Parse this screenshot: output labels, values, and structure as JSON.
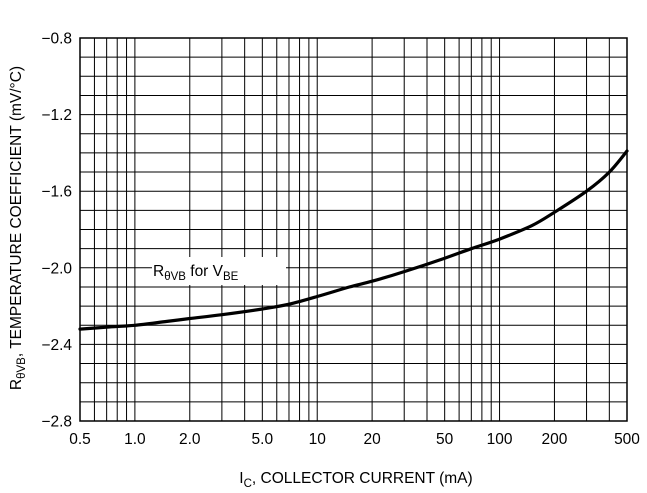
{
  "chart_data": {
    "type": "line",
    "xscale": "log",
    "xlim": [
      0.5,
      500
    ],
    "ylim": [
      -2.8,
      -0.8
    ],
    "grid": true,
    "x_tick_labels": [
      "0.5",
      "1.0",
      "2.0",
      "5.0",
      "10",
      "20",
      "50",
      "100",
      "200",
      "500"
    ],
    "x_tick_values": [
      0.5,
      1,
      2,
      5,
      10,
      20,
      50,
      100,
      200,
      500
    ],
    "y_tick_labels": [
      "−0.8",
      "−1.2",
      "−1.6",
      "−2.0",
      "−2.4",
      "−2.8"
    ],
    "y_tick_values": [
      -0.8,
      -1.2,
      -1.6,
      -2.0,
      -2.4,
      -2.8
    ],
    "xlabel": {
      "main": "I",
      "sub": "C",
      "rest": ", COLLECTOR CURRENT (mA)"
    },
    "ylabel": {
      "main": "R",
      "sub": "θVB",
      "rest": ", TEMPERATURE COEFFICIENT (mV/°C)"
    },
    "annotation": {
      "r": "R",
      "r_sub": "θVB",
      "middle": " for V",
      "v_sub": "BE"
    },
    "series": [
      {
        "x": [
          0.5,
          0.7,
          1.0,
          1.5,
          2.0,
          3.0,
          5.0,
          7.0,
          10,
          15,
          20,
          30,
          50,
          70,
          100,
          150,
          200,
          300,
          400,
          500
        ],
        "y": [
          -2.32,
          -2.31,
          -2.3,
          -2.28,
          -2.265,
          -2.245,
          -2.215,
          -2.19,
          -2.15,
          -2.1,
          -2.07,
          -2.02,
          -1.95,
          -1.9,
          -1.85,
          -1.78,
          -1.71,
          -1.6,
          -1.5,
          -1.39
        ]
      }
    ],
    "colors": {
      "line": "#000000",
      "grid": "#000000",
      "background": "#ffffff"
    }
  }
}
